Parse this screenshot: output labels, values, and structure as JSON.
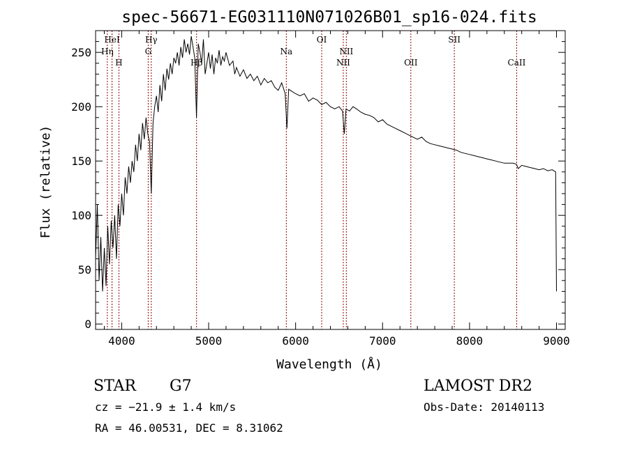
{
  "chart_data": {
    "type": "line",
    "title": "spec-56671-EG031110N071026B01_sp16-024.fits",
    "xlabel": "Wavelength (Å)",
    "ylabel": "Flux (relative)",
    "xlim": [
      3700,
      9100
    ],
    "ylim": [
      -5,
      270
    ],
    "x_ticks": [
      4000,
      5000,
      6000,
      7000,
      8000,
      9000
    ],
    "y_ticks": [
      0,
      50,
      100,
      150,
      200,
      250
    ],
    "line_color": "#000000",
    "marker_color": "#8b0000",
    "series": [
      {
        "x": [
          3700,
          3720,
          3740,
          3760,
          3780,
          3800,
          3820,
          3840,
          3860,
          3880,
          3900,
          3920,
          3940,
          3960,
          3980,
          4000,
          4020,
          4040,
          4060,
          4080,
          4100,
          4120,
          4140,
          4160,
          4180,
          4200,
          4220,
          4240,
          4260,
          4280,
          4300,
          4320,
          4340,
          4360,
          4380,
          4400,
          4420,
          4440,
          4460,
          4480,
          4500,
          4520,
          4540,
          4560,
          4580,
          4600,
          4620,
          4640,
          4660,
          4680,
          4700,
          4720,
          4740,
          4760,
          4780,
          4800,
          4820,
          4840,
          4860,
          4880,
          4900,
          4920,
          4940,
          4960,
          4980,
          5000,
          5020,
          5040,
          5060,
          5080,
          5100,
          5120,
          5140,
          5160,
          5180,
          5200,
          5240,
          5280,
          5300,
          5320,
          5360,
          5400,
          5440,
          5480,
          5520,
          5560,
          5600,
          5640,
          5680,
          5720,
          5760,
          5800,
          5840,
          5880,
          5900,
          5920,
          5960,
          6000,
          6050,
          6100,
          6150,
          6200,
          6250,
          6300,
          6350,
          6400,
          6450,
          6500,
          6540,
          6560,
          6580,
          6620,
          6660,
          6700,
          6750,
          6800,
          6850,
          6900,
          6950,
          7000,
          7050,
          7100,
          7150,
          7200,
          7250,
          7300,
          7350,
          7400,
          7450,
          7500,
          7550,
          7600,
          7650,
          7700,
          7750,
          7800,
          7850,
          7900,
          7950,
          8000,
          8050,
          8100,
          8150,
          8200,
          8250,
          8300,
          8350,
          8400,
          8450,
          8500,
          8540,
          8560,
          8600,
          8650,
          8700,
          8750,
          8800,
          8850,
          8900,
          8950,
          8990,
          9000
        ],
        "y": [
          60,
          110,
          40,
          80,
          30,
          70,
          35,
          90,
          55,
          95,
          70,
          100,
          60,
          110,
          90,
          120,
          100,
          135,
          120,
          145,
          130,
          150,
          140,
          165,
          150,
          175,
          160,
          185,
          170,
          190,
          175,
          168,
          120,
          185,
          200,
          210,
          195,
          220,
          205,
          230,
          215,
          235,
          225,
          240,
          230,
          245,
          240,
          250,
          238,
          255,
          245,
          262,
          250,
          258,
          248,
          265,
          255,
          245,
          190,
          258,
          250,
          240,
          262,
          230,
          240,
          250,
          235,
          248,
          230,
          245,
          240,
          252,
          238,
          246,
          242,
          250,
          238,
          242,
          230,
          236,
          228,
          234,
          226,
          230,
          224,
          228,
          220,
          226,
          222,
          224,
          218,
          215,
          222,
          212,
          180,
          216,
          214,
          212,
          210,
          212,
          205,
          208,
          206,
          202,
          204,
          200,
          198,
          200,
          196,
          175,
          198,
          196,
          200,
          198,
          195,
          193,
          192,
          190,
          186,
          188,
          184,
          182,
          180,
          178,
          176,
          174,
          172,
          170,
          172,
          168,
          166,
          165,
          164,
          163,
          162,
          161,
          160,
          158,
          157,
          156,
          155,
          154,
          153,
          152,
          151,
          150,
          149,
          148,
          148,
          148,
          147,
          143,
          146,
          145,
          144,
          143,
          142,
          143,
          141,
          142,
          140,
          30
        ]
      }
    ],
    "lines": [
      {
        "label": "HeI",
        "x": 3889
      },
      {
        "label": "Hη",
        "x": 3835
      },
      {
        "label": "H",
        "x": 3968
      },
      {
        "label": "Hγ",
        "x": 4340
      },
      {
        "label": "G",
        "x": 4305
      },
      {
        "label": "Hβ",
        "x": 4861
      },
      {
        "label": "Na",
        "x": 5893
      },
      {
        "label": "OI",
        "x": 6300
      },
      {
        "label": "NII",
        "x": 6583
      },
      {
        "label": "NII",
        "x": 6548
      },
      {
        "label": "OII",
        "x": 7325
      },
      {
        "label": "SII",
        "x": 7825
      },
      {
        "label": "CaII",
        "x": 8542
      }
    ]
  },
  "info": {
    "class": "STAR",
    "subclass": "G7",
    "survey": "LAMOST DR2",
    "cz": "cz = −21.9 ± 1.4 km/s",
    "obs_date": "Obs-Date: 20140113",
    "coords": "RA =  46.00531, DEC =   8.31062"
  }
}
